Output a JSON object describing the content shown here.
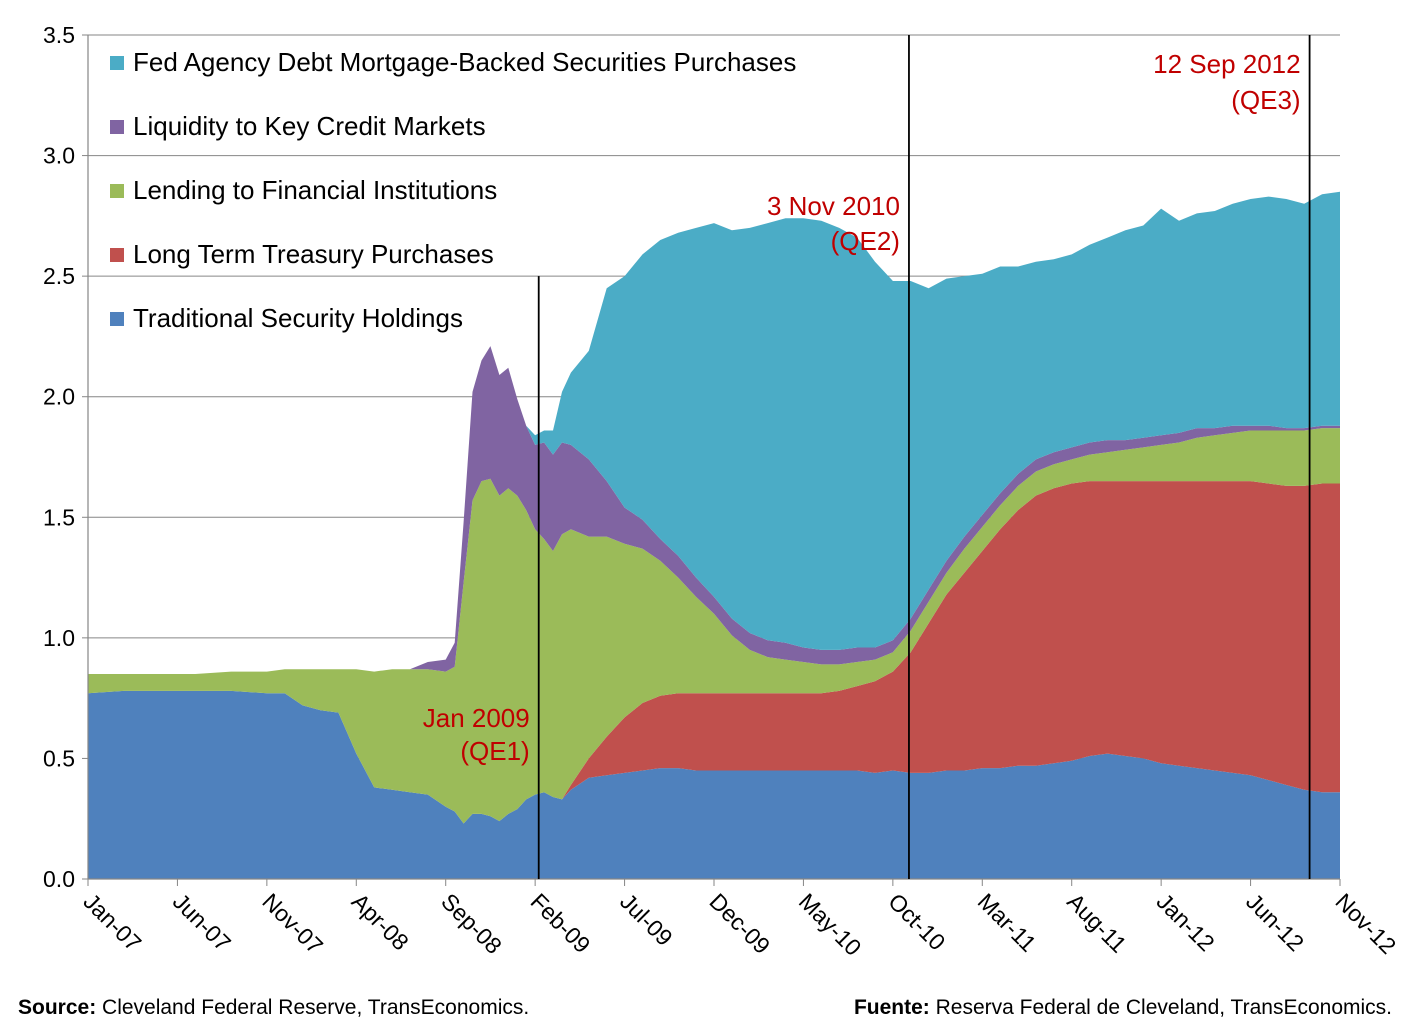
{
  "chart_data": {
    "type": "area",
    "stacked": true,
    "ylim": [
      0,
      3.5
    ],
    "yticks": [
      "0.0",
      "0.5",
      "1.0",
      "1.5",
      "2.0",
      "2.5",
      "3.0",
      "3.5"
    ],
    "ytick_values": [
      0,
      0.5,
      1.0,
      1.5,
      2.0,
      2.5,
      3.0,
      3.5
    ],
    "xlim": [
      0,
      70
    ],
    "xticks": [
      "Jan-07",
      "Jun-07",
      "Nov-07",
      "Apr-08",
      "Sep-08",
      "Feb-09",
      "Jul-09",
      "Dec-09",
      "May-10",
      "Oct-10",
      "Mar-11",
      "Aug-11",
      "Jan-12",
      "Jun-12",
      "Nov-12"
    ],
    "xtick_values": [
      0,
      5,
      10,
      15,
      20,
      25,
      30,
      35,
      40,
      45,
      50,
      55,
      60,
      65,
      70
    ],
    "grid": "horizontal",
    "legend_position": "top-left",
    "x": [
      0,
      2,
      4,
      6,
      8,
      10,
      11,
      12,
      13,
      14,
      15,
      16,
      17,
      18,
      19,
      20,
      20.5,
      21,
      21.5,
      22,
      22.5,
      23,
      23.5,
      24,
      24.5,
      25,
      25.5,
      26,
      26.5,
      27,
      28,
      29,
      30,
      31,
      32,
      33,
      34,
      35,
      36,
      37,
      38,
      39,
      40,
      41,
      42,
      43,
      44,
      45,
      46,
      47,
      48,
      49,
      50,
      51,
      52,
      53,
      54,
      55,
      56,
      57,
      58,
      59,
      60,
      61,
      62,
      63,
      64,
      65,
      66,
      67,
      68,
      69,
      70
    ],
    "series": [
      {
        "name": "Traditional Security Holdings",
        "color": "#4f81bd",
        "values": [
          0.77,
          0.78,
          0.78,
          0.78,
          0.78,
          0.77,
          0.77,
          0.72,
          0.7,
          0.69,
          0.52,
          0.38,
          0.37,
          0.36,
          0.35,
          0.3,
          0.28,
          0.23,
          0.27,
          0.27,
          0.26,
          0.24,
          0.27,
          0.29,
          0.33,
          0.35,
          0.36,
          0.34,
          0.33,
          0.37,
          0.42,
          0.43,
          0.44,
          0.45,
          0.46,
          0.46,
          0.45,
          0.45,
          0.45,
          0.45,
          0.45,
          0.45,
          0.45,
          0.45,
          0.45,
          0.45,
          0.44,
          0.45,
          0.44,
          0.44,
          0.45,
          0.45,
          0.46,
          0.46,
          0.47,
          0.47,
          0.48,
          0.49,
          0.51,
          0.52,
          0.51,
          0.5,
          0.48,
          0.47,
          0.46,
          0.45,
          0.44,
          0.43,
          0.41,
          0.39,
          0.37,
          0.36,
          0.36
        ]
      },
      {
        "name": "Long Term Treasury Purchases",
        "color": "#c0504d",
        "values": [
          0,
          0,
          0,
          0,
          0,
          0,
          0,
          0,
          0,
          0,
          0,
          0,
          0,
          0,
          0,
          0,
          0,
          0,
          0,
          0,
          0,
          0,
          0,
          0,
          0,
          0,
          0,
          0,
          0,
          0.02,
          0.08,
          0.16,
          0.23,
          0.28,
          0.3,
          0.31,
          0.32,
          0.32,
          0.32,
          0.32,
          0.32,
          0.32,
          0.32,
          0.32,
          0.33,
          0.35,
          0.38,
          0.41,
          0.5,
          0.62,
          0.73,
          0.82,
          0.9,
          0.99,
          1.06,
          1.12,
          1.14,
          1.15,
          1.14,
          1.13,
          1.14,
          1.15,
          1.17,
          1.18,
          1.19,
          1.2,
          1.21,
          1.22,
          1.23,
          1.24,
          1.26,
          1.28,
          1.28
        ]
      },
      {
        "name": "Lending to Financial Institutions",
        "color": "#9bbb59",
        "values": [
          0.08,
          0.07,
          0.07,
          0.07,
          0.08,
          0.09,
          0.1,
          0.15,
          0.17,
          0.18,
          0.35,
          0.48,
          0.5,
          0.51,
          0.52,
          0.56,
          0.6,
          1.0,
          1.3,
          1.38,
          1.4,
          1.35,
          1.35,
          1.3,
          1.2,
          1.1,
          1.05,
          1.02,
          1.1,
          1.06,
          0.92,
          0.83,
          0.72,
          0.64,
          0.56,
          0.48,
          0.4,
          0.33,
          0.24,
          0.18,
          0.15,
          0.14,
          0.13,
          0.12,
          0.11,
          0.1,
          0.09,
          0.08,
          0.09,
          0.09,
          0.09,
          0.1,
          0.1,
          0.1,
          0.1,
          0.1,
          0.1,
          0.1,
          0.11,
          0.12,
          0.13,
          0.14,
          0.15,
          0.16,
          0.18,
          0.19,
          0.2,
          0.21,
          0.22,
          0.23,
          0.23,
          0.23,
          0.23
        ]
      },
      {
        "name": "Liquidity to Key Credit Markets",
        "color": "#8064a2",
        "values": [
          0,
          0,
          0,
          0,
          0,
          0,
          0,
          0,
          0,
          0,
          0,
          0,
          0,
          0,
          0.03,
          0.05,
          0.1,
          0.25,
          0.45,
          0.5,
          0.55,
          0.5,
          0.5,
          0.4,
          0.35,
          0.35,
          0.4,
          0.4,
          0.38,
          0.35,
          0.32,
          0.23,
          0.15,
          0.12,
          0.09,
          0.09,
          0.08,
          0.07,
          0.07,
          0.07,
          0.07,
          0.07,
          0.06,
          0.06,
          0.06,
          0.06,
          0.05,
          0.05,
          0.05,
          0.05,
          0.05,
          0.05,
          0.05,
          0.05,
          0.05,
          0.05,
          0.05,
          0.05,
          0.05,
          0.05,
          0.04,
          0.04,
          0.04,
          0.04,
          0.04,
          0.03,
          0.03,
          0.02,
          0.02,
          0.01,
          0.01,
          0.01,
          0.01
        ]
      },
      {
        "name": "Fed Agency Debt Mortgage-Backed Securities Purchases",
        "color": "#4bacc6",
        "values": [
          0,
          0,
          0,
          0,
          0,
          0,
          0,
          0,
          0,
          0,
          0,
          0,
          0,
          0,
          0,
          0,
          0,
          0,
          0,
          0,
          0,
          0,
          0,
          0,
          0,
          0.04,
          0.05,
          0.1,
          0.21,
          0.3,
          0.45,
          0.8,
          0.96,
          1.1,
          1.24,
          1.34,
          1.45,
          1.55,
          1.61,
          1.68,
          1.73,
          1.76,
          1.78,
          1.78,
          1.75,
          1.7,
          1.6,
          1.49,
          1.4,
          1.25,
          1.17,
          1.08,
          1.0,
          0.94,
          0.86,
          0.82,
          0.8,
          0.8,
          0.82,
          0.84,
          0.87,
          0.88,
          0.94,
          0.88,
          0.89,
          0.9,
          0.92,
          0.94,
          0.95,
          0.95,
          0.93,
          0.96,
          0.97
        ]
      }
    ],
    "annotations": [
      {
        "label": "Jan 2009",
        "sublabel": "(QE1)",
        "x": 25.2,
        "line_top": 2.5
      },
      {
        "label": "3 Nov 2010",
        "sublabel": "(QE2)",
        "x": 45.9,
        "line_top": 3.5
      },
      {
        "label": "12 Sep 2012",
        "sublabel": "(QE3)",
        "x": 68.3,
        "line_top": 3.5
      }
    ],
    "annotation_color": "#c00000"
  },
  "footer": {
    "source_label": "Source:",
    "source_text": " Cleveland Federal Reserve, TransEconomics.",
    "fuente_label": "Fuente:",
    "fuente_text": " Reserva Federal de Cleveland, TransEconomics."
  }
}
